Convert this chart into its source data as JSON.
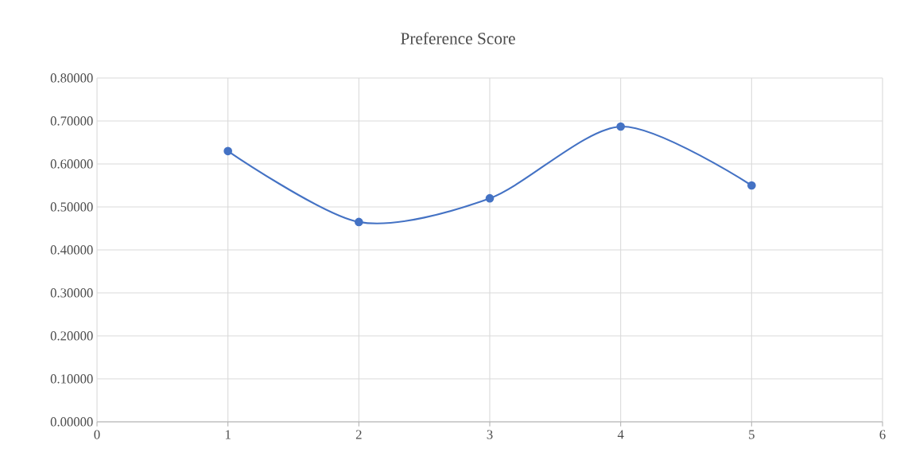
{
  "chart_data": {
    "type": "line",
    "title": "Preference Score",
    "x": [
      1,
      2,
      3,
      4,
      5
    ],
    "series": [
      {
        "color": "#4472c4",
        "values": [
          0.63,
          0.465,
          0.52,
          0.687,
          0.55
        ]
      }
    ],
    "xlim": [
      0,
      6
    ],
    "xticks": [
      0,
      1,
      2,
      3,
      4,
      5,
      6
    ],
    "ylim": [
      0,
      0.8
    ],
    "yticks": [
      {
        "value": 0,
        "label": "0.00000"
      },
      {
        "value": 0.1,
        "label": "0.10000"
      },
      {
        "value": 0.2,
        "label": "0.20000"
      },
      {
        "value": 0.3,
        "label": "0.30000"
      },
      {
        "value": 0.4,
        "label": "0.40000"
      },
      {
        "value": 0.5,
        "label": "0.50000"
      },
      {
        "value": 0.6,
        "label": "0.60000"
      },
      {
        "value": 0.7,
        "label": "0.70000"
      },
      {
        "value": 0.8,
        "label": "0.80000"
      }
    ],
    "grid": true,
    "marker": "circle",
    "line_style": "solid"
  }
}
